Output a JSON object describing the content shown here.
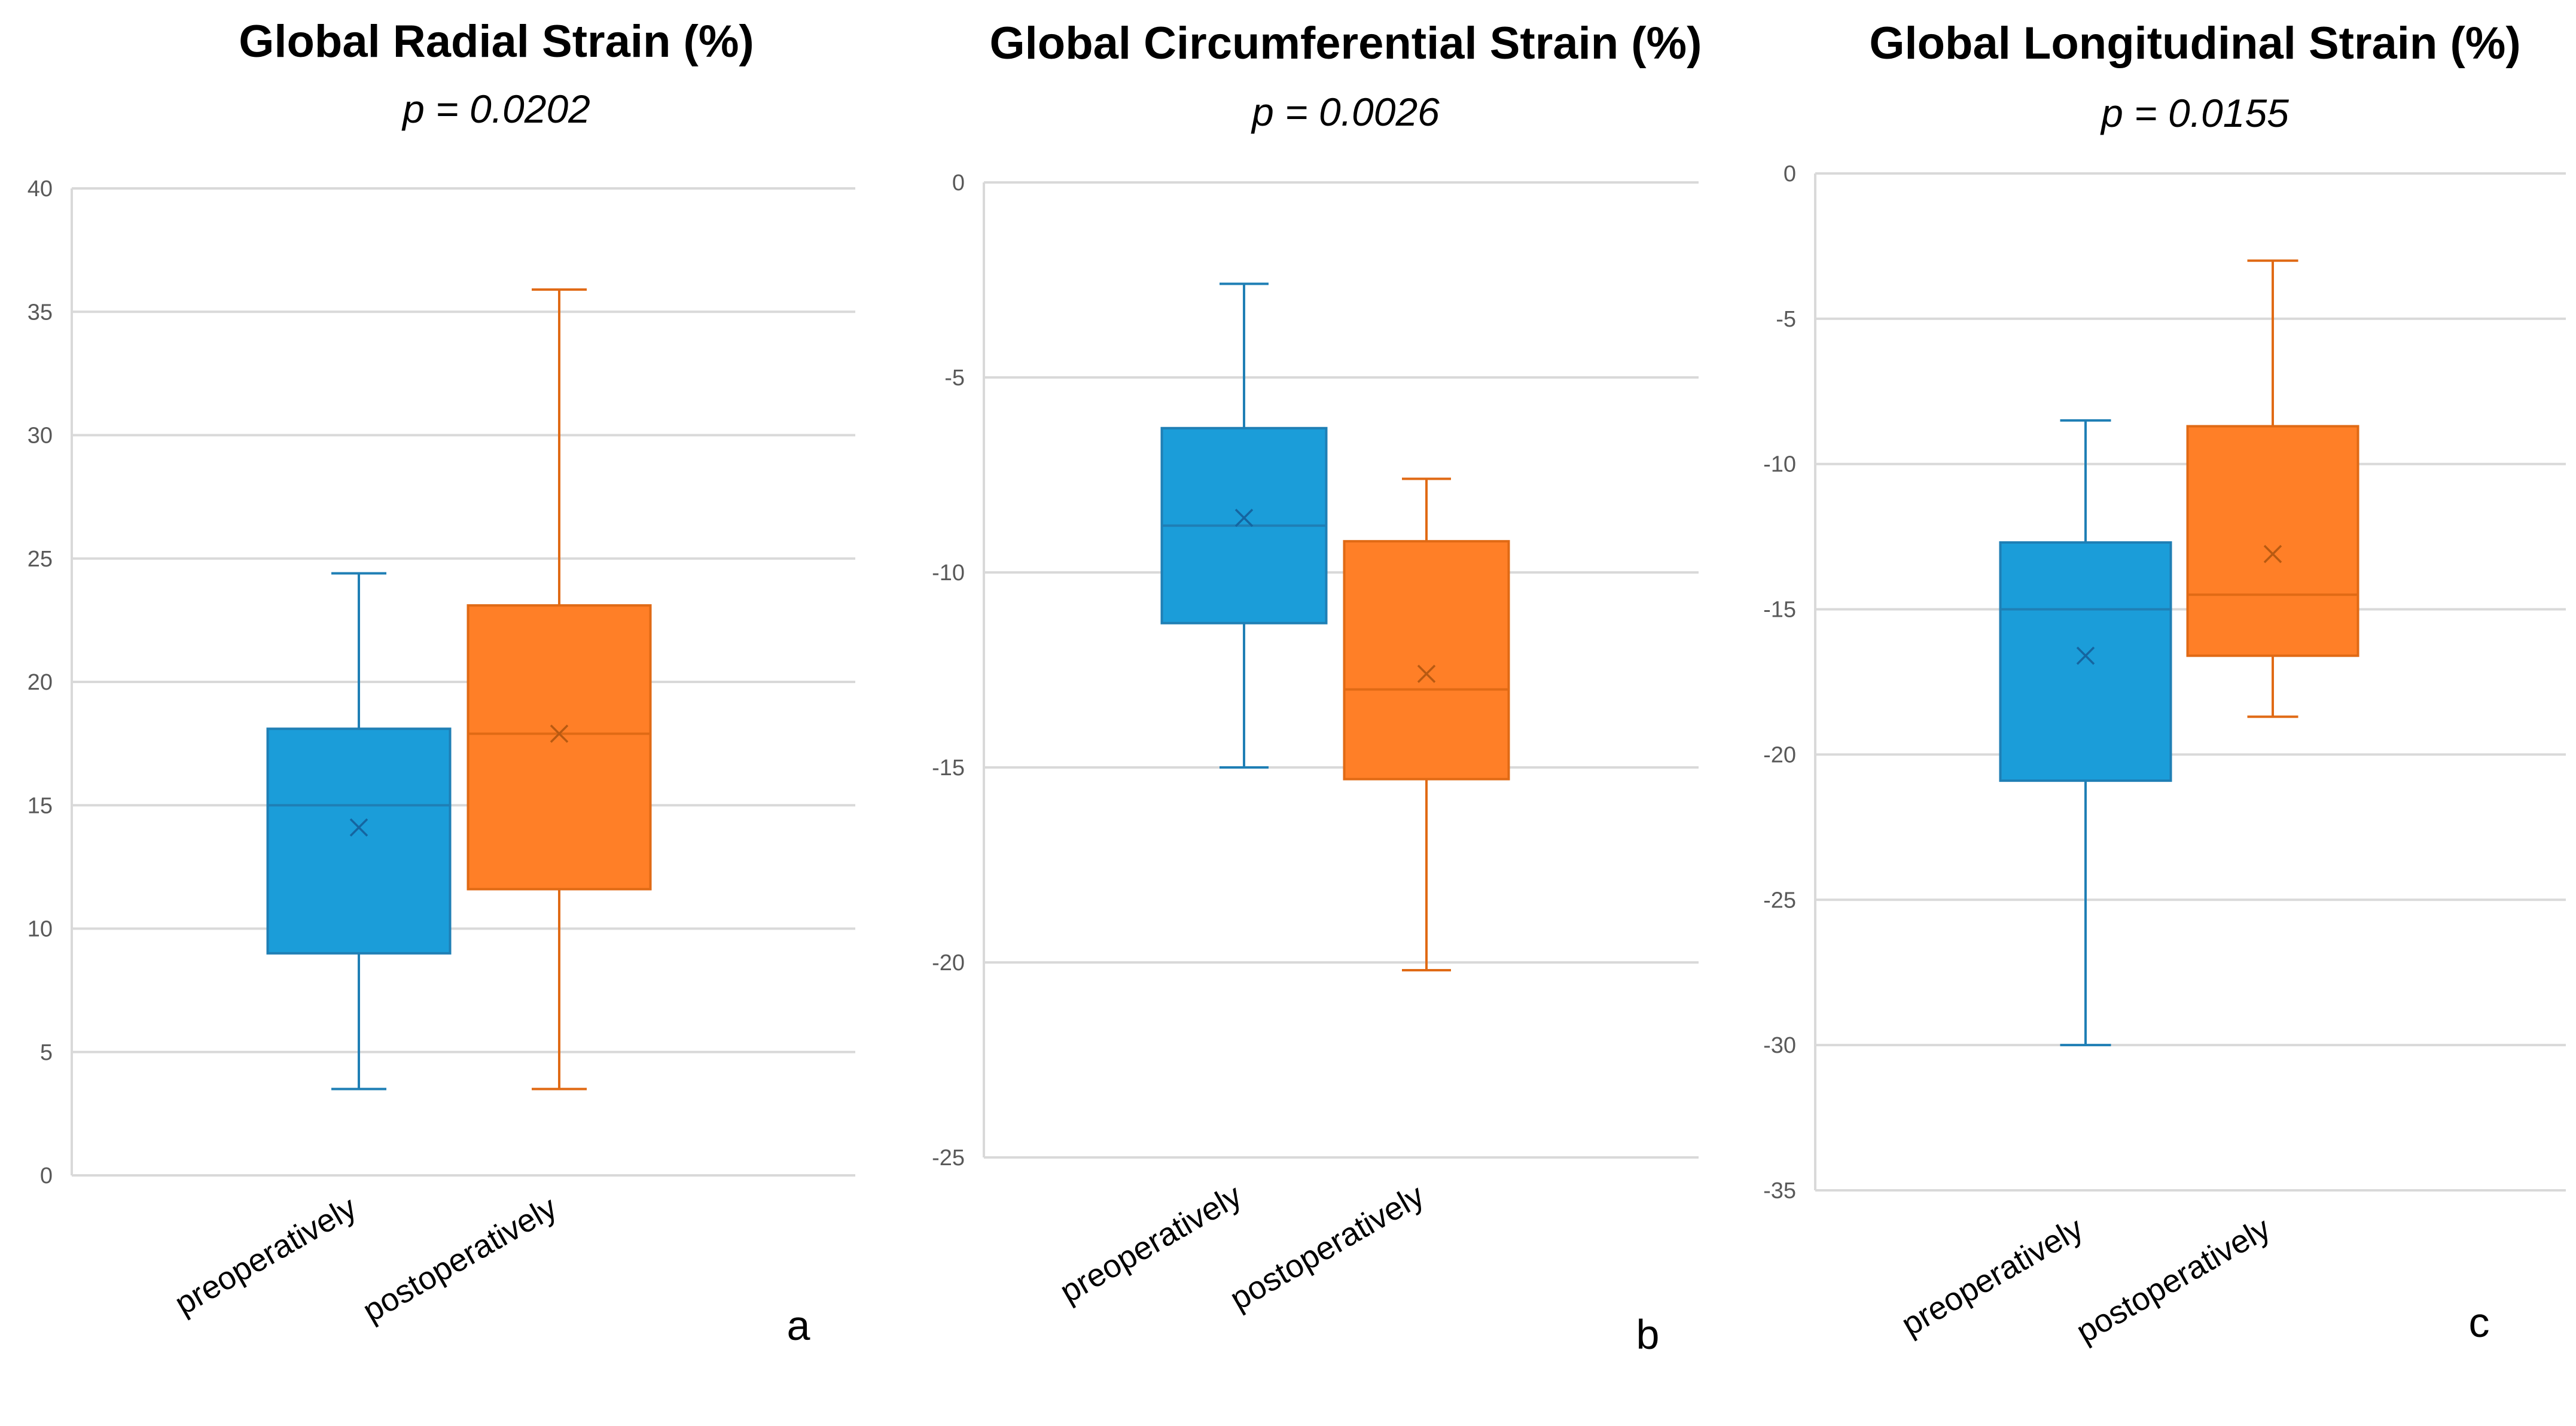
{
  "chart_data": [
    {
      "type": "boxplot",
      "title": "Global Radial Strain (%)",
      "subtitle": "p = 0.0202",
      "panel_label": "a",
      "ylim": [
        0,
        40
      ],
      "ytick_step": 5,
      "ticks": [
        "0",
        "5",
        "10",
        "15",
        "20",
        "25",
        "30",
        "35",
        "40"
      ],
      "categories": [
        "preoperatively",
        "postoperatively"
      ],
      "series": [
        {
          "name": "preoperatively",
          "color": "#1B9DD9",
          "edge": "#1F7FB5",
          "min": 3.5,
          "q1": 9.0,
          "median": 15.0,
          "q3": 18.1,
          "max": 24.4,
          "mean": 14.1
        },
        {
          "name": "postoperatively",
          "color": "#FF7F27",
          "edge": "#E06A15",
          "min": 3.5,
          "q1": 11.6,
          "median": 17.9,
          "q3": 23.1,
          "max": 35.9,
          "mean": 17.9
        }
      ]
    },
    {
      "type": "boxplot",
      "title": "Global Circumferential Strain (%)",
      "subtitle": "p = 0.0026",
      "panel_label": "b",
      "ylim": [
        -25,
        0
      ],
      "ytick_step": 5,
      "ticks": [
        "-25",
        "-20",
        "-15",
        "-10",
        "-5",
        "0"
      ],
      "categories": [
        "preoperatively",
        "postoperatively"
      ],
      "series": [
        {
          "name": "preoperatively",
          "color": "#1B9DD9",
          "edge": "#1F7FB5",
          "min": -15.0,
          "q1": -11.3,
          "median": -8.8,
          "q3": -6.3,
          "max": -2.6,
          "mean": -8.6
        },
        {
          "name": "postoperatively",
          "color": "#FF7F27",
          "edge": "#E06A15",
          "min": -20.2,
          "q1": -15.3,
          "median": -13.0,
          "q3": -9.2,
          "max": -7.6,
          "mean": -12.6
        }
      ]
    },
    {
      "type": "boxplot",
      "title": "Global Longitudinal Strain (%)",
      "subtitle": "p = 0.0155",
      "panel_label": "c",
      "ylim": [
        -35,
        0
      ],
      "ytick_step": 5,
      "ticks": [
        "-35",
        "-30",
        "-25",
        "-20",
        "-15",
        "-10",
        "-5",
        "0"
      ],
      "categories": [
        "preoperatively",
        "postoperatively"
      ],
      "series": [
        {
          "name": "preoperatively",
          "color": "#1B9DD9",
          "edge": "#1F7FB5",
          "min": -30.0,
          "q1": -20.9,
          "median": -15.0,
          "q3": -12.7,
          "max": -8.5,
          "mean": -16.6
        },
        {
          "name": "postoperatively",
          "color": "#FF7F27",
          "edge": "#E06A15",
          "min": -18.7,
          "q1": -16.6,
          "median": -14.5,
          "q3": -8.7,
          "max": -3.0,
          "mean": -13.1
        }
      ]
    }
  ]
}
